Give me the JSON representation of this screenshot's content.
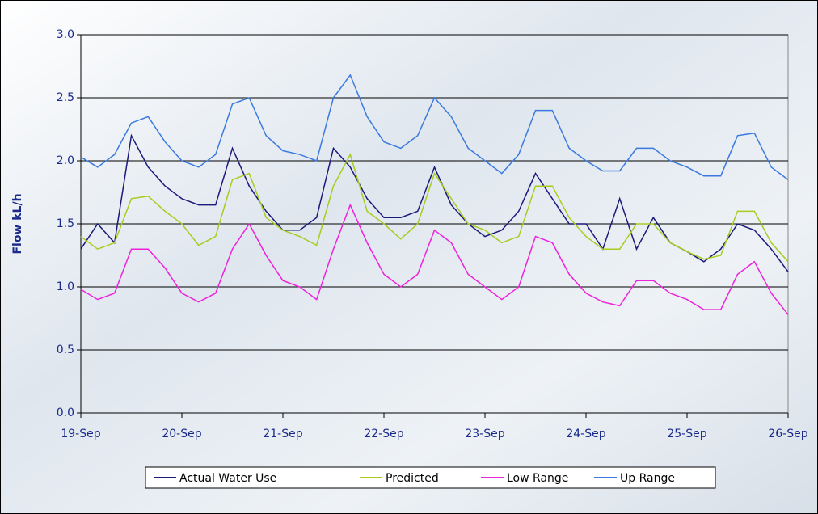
{
  "chart_data": {
    "type": "line",
    "y_label": "Flow kL/h",
    "categories": [
      "19-Sep",
      null,
      null,
      null,
      null,
      null,
      "20-Sep",
      null,
      null,
      null,
      null,
      null,
      "21-Sep",
      null,
      null,
      null,
      null,
      null,
      "22-Sep",
      null,
      null,
      null,
      null,
      null,
      "23-Sep",
      null,
      null,
      null,
      null,
      null,
      "24-Sep",
      null,
      null,
      null,
      null,
      null,
      "25-Sep",
      null,
      null,
      null,
      null,
      null,
      "26-Sep"
    ],
    "ylim": [
      0,
      3
    ],
    "yticks": [
      {
        "value": 0,
        "label": "0.0"
      },
      {
        "value": 0.5,
        "label": "0.5"
      },
      {
        "value": 1,
        "label": "1.0"
      },
      {
        "value": 1.5,
        "label": "1.5"
      },
      {
        "value": 2,
        "label": "2.0"
      },
      {
        "value": 2.5,
        "label": "2.5"
      },
      {
        "value": 3,
        "label": "3.0"
      }
    ],
    "grid": true,
    "legend": "bottom",
    "series": [
      {
        "name": "Actual Water Use",
        "color": "#1a1a7a",
        "values": [
          1.3,
          1.5,
          1.35,
          2.2,
          1.95,
          1.8,
          1.7,
          1.65,
          1.65,
          2.1,
          1.8,
          1.6,
          1.45,
          1.45,
          1.55,
          2.1,
          1.95,
          1.7,
          1.55,
          1.55,
          1.6,
          1.95,
          1.65,
          1.5,
          1.4,
          1.45,
          1.6,
          1.9,
          1.7,
          1.5,
          1.5,
          1.3,
          1.7,
          1.3,
          1.55,
          1.35,
          1.28,
          1.2,
          1.3,
          1.5,
          1.45,
          1.3,
          1.12
        ]
      },
      {
        "name": "Predicted",
        "color": "#a8cc1e",
        "values": [
          1.4,
          1.3,
          1.35,
          1.7,
          1.72,
          1.6,
          1.5,
          1.33,
          1.4,
          1.85,
          1.9,
          1.55,
          1.45,
          1.4,
          1.33,
          1.8,
          2.05,
          1.6,
          1.5,
          1.38,
          1.5,
          1.9,
          1.7,
          1.5,
          1.45,
          1.35,
          1.4,
          1.8,
          1.8,
          1.55,
          1.4,
          1.3,
          1.3,
          1.5,
          1.5,
          1.35,
          1.28,
          1.22,
          1.25,
          1.6,
          1.6,
          1.35,
          1.2
        ]
      },
      {
        "name": "Low Range",
        "color": "#ee22dd",
        "values": [
          0.98,
          0.9,
          0.95,
          1.3,
          1.3,
          1.15,
          0.95,
          0.88,
          0.95,
          1.3,
          1.5,
          1.25,
          1.05,
          1.0,
          0.9,
          1.3,
          1.65,
          1.35,
          1.1,
          1.0,
          1.1,
          1.45,
          1.35,
          1.1,
          1.0,
          0.9,
          1.0,
          1.4,
          1.35,
          1.1,
          0.95,
          0.88,
          0.85,
          1.05,
          1.05,
          0.95,
          0.9,
          0.82,
          0.82,
          1.1,
          1.2,
          0.95,
          0.78
        ]
      },
      {
        "name": "Up Range",
        "color": "#3a7ae0",
        "values": [
          2.03,
          1.95,
          2.05,
          2.3,
          2.35,
          2.15,
          2.0,
          1.95,
          2.05,
          2.45,
          2.5,
          2.2,
          2.08,
          2.05,
          2.0,
          2.5,
          2.68,
          2.35,
          2.15,
          2.1,
          2.2,
          2.5,
          2.35,
          2.1,
          2.0,
          1.9,
          2.05,
          2.4,
          2.4,
          2.1,
          2.0,
          1.92,
          1.92,
          2.1,
          2.1,
          2.0,
          1.95,
          1.88,
          1.88,
          2.2,
          2.22,
          1.95,
          1.85
        ]
      }
    ]
  }
}
